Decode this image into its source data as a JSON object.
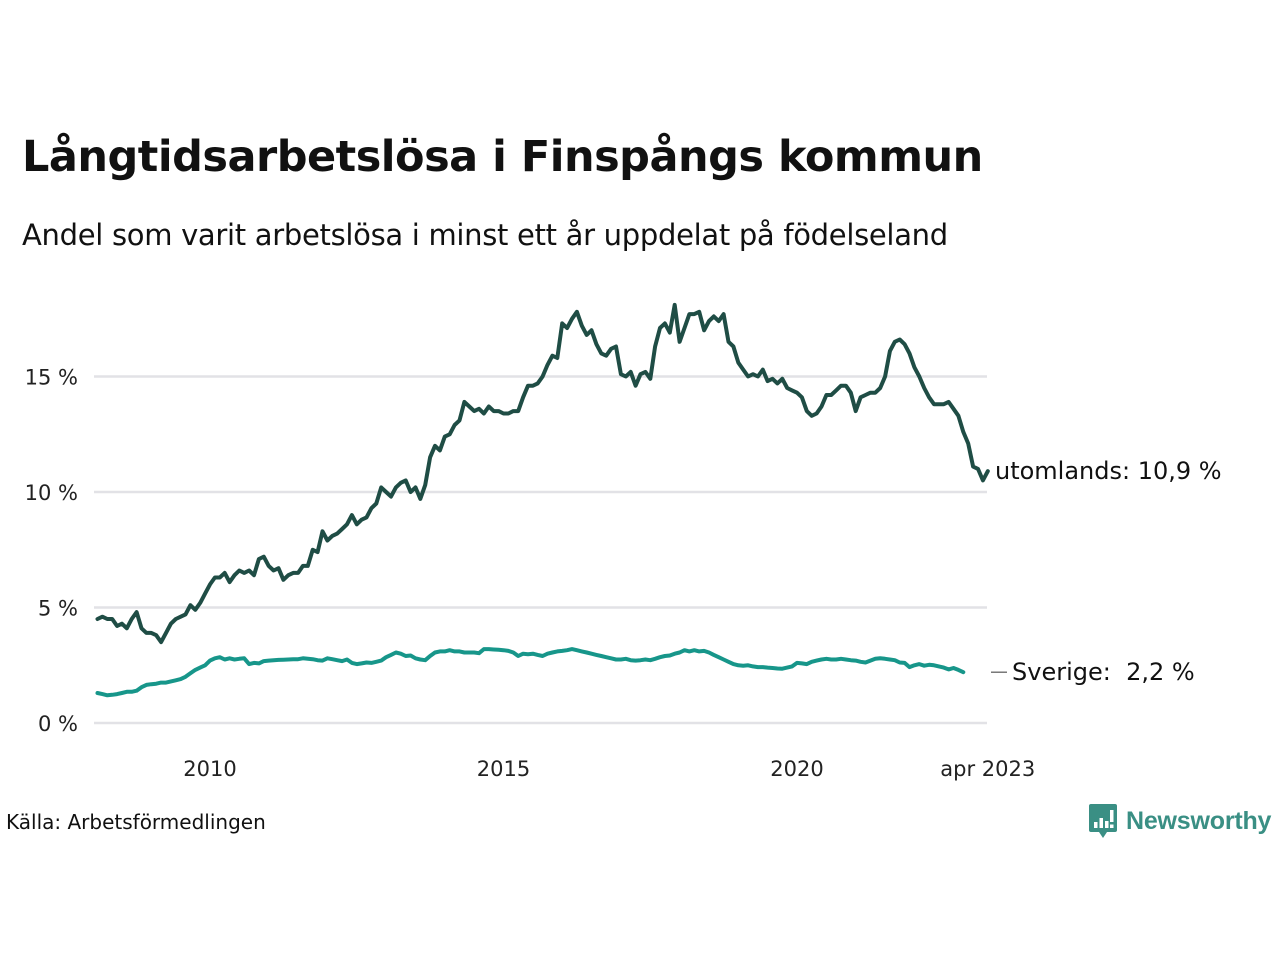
{
  "header": {
    "title": "Långtidsarbetslösa i Finspångs kommun",
    "subtitle": "Andel som varit arbetslösa i minst ett år uppdelat på födelseland"
  },
  "footer": {
    "source": "Källa: Arbetsförmedlingen",
    "brand": "Newsworthy",
    "brand_icon": "bar-chart-speech-bubble-icon"
  },
  "colors": {
    "utomlands": "#1f4d45",
    "sverige": "#17968a",
    "grid": "#e2e2e6",
    "brand": "#3a8f84"
  },
  "chart_data": {
    "type": "line",
    "title": "Långtidsarbetslösa i Finspångs kommun",
    "subtitle": "Andel som varit arbetslösa i minst ett år uppdelat på födelseland",
    "xlabel": "",
    "ylabel": "",
    "x_start": "2008-02",
    "x_end": "2023-04",
    "x_frequency": "monthly",
    "x_ticks": [
      {
        "value": 2010.0,
        "label": "2010"
      },
      {
        "value": 2015.0,
        "label": "2015"
      },
      {
        "value": 2020.0,
        "label": "2020"
      },
      {
        "value": 2023.25,
        "label": "apr 2023"
      }
    ],
    "y_ticks": [
      {
        "value": 0,
        "label": "0 %"
      },
      {
        "value": 5,
        "label": "5 %"
      },
      {
        "value": 10,
        "label": "10 %"
      },
      {
        "value": 15,
        "label": "15 %"
      }
    ],
    "ylim": [
      0,
      18.5
    ],
    "grid": true,
    "legend": "direct-labels-right",
    "series": [
      {
        "name": "utomlands",
        "end_label": "utomlands: 10,9 %",
        "last_value": 10.9,
        "values": [
          4.5,
          4.6,
          4.5,
          4.5,
          4.2,
          4.3,
          4.1,
          4.5,
          4.8,
          4.1,
          3.9,
          3.9,
          3.8,
          3.5,
          3.9,
          4.3,
          4.5,
          4.6,
          4.7,
          5.1,
          4.9,
          5.2,
          5.6,
          6.0,
          6.3,
          6.3,
          6.5,
          6.1,
          6.4,
          6.6,
          6.5,
          6.6,
          6.4,
          7.1,
          7.2,
          6.8,
          6.6,
          6.7,
          6.2,
          6.4,
          6.5,
          6.5,
          6.8,
          6.8,
          7.5,
          7.4,
          8.3,
          7.9,
          8.1,
          8.2,
          8.4,
          8.6,
          9.0,
          8.6,
          8.8,
          8.9,
          9.3,
          9.5,
          10.2,
          10.0,
          9.8,
          10.2,
          10.4,
          10.5,
          10.0,
          10.2,
          9.7,
          10.3,
          11.5,
          12.0,
          11.8,
          12.4,
          12.5,
          12.9,
          13.1,
          13.9,
          13.7,
          13.5,
          13.6,
          13.4,
          13.7,
          13.5,
          13.5,
          13.4,
          13.4,
          13.5,
          13.5,
          14.1,
          14.6,
          14.6,
          14.7,
          15.0,
          15.5,
          15.9,
          15.8,
          17.3,
          17.1,
          17.5,
          17.8,
          17.2,
          16.8,
          17.0,
          16.4,
          16.0,
          15.9,
          16.2,
          16.3,
          15.1,
          15.0,
          15.2,
          14.6,
          15.1,
          15.2,
          14.9,
          16.3,
          17.1,
          17.3,
          16.9,
          18.1,
          16.5,
          17.1,
          17.7,
          17.7,
          17.8,
          17.0,
          17.4,
          17.6,
          17.4,
          17.7,
          16.5,
          16.3,
          15.6,
          15.3,
          15.0,
          15.1,
          15.0,
          15.3,
          14.8,
          14.9,
          14.7,
          14.9,
          14.5,
          14.4,
          14.3,
          14.1,
          13.5,
          13.3,
          13.4,
          13.7,
          14.2,
          14.2,
          14.4,
          14.6,
          14.6,
          14.3,
          13.5,
          14.1,
          14.2,
          14.3,
          14.3,
          14.5,
          15.0,
          16.1,
          16.5,
          16.6,
          16.4,
          16.0,
          15.4,
          15.0,
          14.5,
          14.1,
          13.8,
          13.8,
          13.8,
          13.9,
          13.6,
          13.3,
          12.6,
          12.1,
          11.1,
          11.0,
          10.5,
          10.9
        ]
      },
      {
        "name": "Sverige",
        "end_label": "Sverige:  2,2 %",
        "last_value": 2.2,
        "values": [
          1.3,
          1.25,
          1.2,
          1.22,
          1.25,
          1.3,
          1.35,
          1.35,
          1.4,
          1.55,
          1.65,
          1.68,
          1.7,
          1.75,
          1.75,
          1.8,
          1.85,
          1.9,
          2.0,
          2.15,
          2.3,
          2.4,
          2.5,
          2.7,
          2.8,
          2.85,
          2.75,
          2.8,
          2.75,
          2.78,
          2.8,
          2.55,
          2.6,
          2.58,
          2.68,
          2.7,
          2.72,
          2.73,
          2.74,
          2.75,
          2.76,
          2.76,
          2.8,
          2.78,
          2.76,
          2.72,
          2.7,
          2.8,
          2.76,
          2.72,
          2.68,
          2.75,
          2.6,
          2.55,
          2.58,
          2.62,
          2.6,
          2.65,
          2.7,
          2.85,
          2.95,
          3.05,
          3.0,
          2.9,
          2.92,
          2.8,
          2.75,
          2.72,
          2.9,
          3.05,
          3.1,
          3.1,
          3.15,
          3.1,
          3.1,
          3.05,
          3.05,
          3.05,
          3.02,
          3.2,
          3.2,
          3.18,
          3.17,
          3.15,
          3.12,
          3.05,
          2.9,
          3.0,
          2.98,
          3.0,
          2.95,
          2.9,
          3.0,
          3.05,
          3.1,
          3.12,
          3.15,
          3.2,
          3.15,
          3.1,
          3.05,
          3.0,
          2.95,
          2.9,
          2.85,
          2.8,
          2.75,
          2.75,
          2.78,
          2.72,
          2.7,
          2.72,
          2.75,
          2.72,
          2.78,
          2.85,
          2.9,
          2.92,
          3.0,
          3.05,
          3.15,
          3.1,
          3.15,
          3.1,
          3.12,
          3.05,
          2.95,
          2.85,
          2.75,
          2.65,
          2.55,
          2.5,
          2.48,
          2.5,
          2.45,
          2.42,
          2.42,
          2.4,
          2.38,
          2.36,
          2.35,
          2.4,
          2.45,
          2.6,
          2.58,
          2.55,
          2.65,
          2.7,
          2.75,
          2.78,
          2.75,
          2.75,
          2.78,
          2.75,
          2.72,
          2.7,
          2.65,
          2.62,
          2.7,
          2.78,
          2.8,
          2.78,
          2.75,
          2.72,
          2.62,
          2.6,
          2.42,
          2.5,
          2.55,
          2.48,
          2.52,
          2.5,
          2.45,
          2.4,
          2.32,
          2.38,
          2.3,
          2.2
        ]
      }
    ]
  }
}
